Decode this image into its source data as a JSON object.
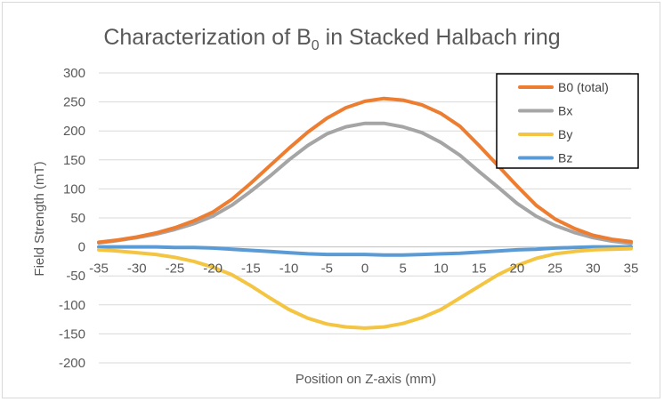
{
  "chart_data": {
    "type": "line",
    "title": "Characterization of B",
    "title_subscript": "0",
    "title_suffix": " in Stacked Halbach ring",
    "xlabel": "Position on Z-axis (mm)",
    "ylabel": "Field Strength (mT)",
    "xlim": [
      -35,
      35
    ],
    "ylim": [
      -200,
      300
    ],
    "xticks": [
      -35,
      -30,
      -25,
      -20,
      -15,
      -10,
      -5,
      0,
      5,
      10,
      15,
      20,
      25,
      30,
      35
    ],
    "yticks": [
      -200,
      -150,
      -100,
      -50,
      0,
      50,
      100,
      150,
      200,
      250,
      300
    ],
    "grid": true,
    "legend_position": "top-right",
    "x": [
      -35,
      -32.5,
      -30,
      -27.5,
      -25,
      -22.5,
      -20,
      -17.5,
      -15,
      -12.5,
      -10,
      -7.5,
      -5,
      -2.5,
      0,
      2.5,
      5,
      7.5,
      10,
      12.5,
      15,
      17.5,
      20,
      22.5,
      25,
      27.5,
      30,
      32.5,
      35
    ],
    "series": [
      {
        "name": "B0 (total)",
        "color": "#ED7D31",
        "values": [
          8,
          12,
          17,
          24,
          33,
          45,
          60,
          82,
          110,
          140,
          170,
          198,
          222,
          240,
          251,
          256,
          253,
          245,
          230,
          208,
          175,
          140,
          105,
          72,
          48,
          32,
          20,
          13,
          9
        ]
      },
      {
        "name": "Bx",
        "color": "#A5A5A5",
        "values": [
          7,
          11,
          16,
          22,
          30,
          40,
          53,
          72,
          96,
          122,
          150,
          175,
          195,
          207,
          213,
          213,
          207,
          197,
          180,
          158,
          130,
          103,
          75,
          53,
          37,
          25,
          16,
          10,
          6
        ]
      },
      {
        "name": "By",
        "color": "#F4C542",
        "values": [
          -5,
          -7,
          -10,
          -13,
          -18,
          -25,
          -35,
          -48,
          -67,
          -88,
          -108,
          -123,
          -133,
          -138,
          -140,
          -138,
          -132,
          -122,
          -108,
          -88,
          -68,
          -48,
          -32,
          -20,
          -12,
          -8,
          -5,
          -4,
          -3
        ]
      },
      {
        "name": "Bz",
        "color": "#5B9BD5",
        "values": [
          0,
          0,
          0,
          0,
          -1,
          -1,
          -2,
          -4,
          -6,
          -8,
          -10,
          -12,
          -13,
          -13,
          -13,
          -14,
          -14,
          -13,
          -12,
          -11,
          -9,
          -7,
          -5,
          -4,
          -2,
          -1,
          0,
          0,
          0
        ]
      }
    ]
  }
}
